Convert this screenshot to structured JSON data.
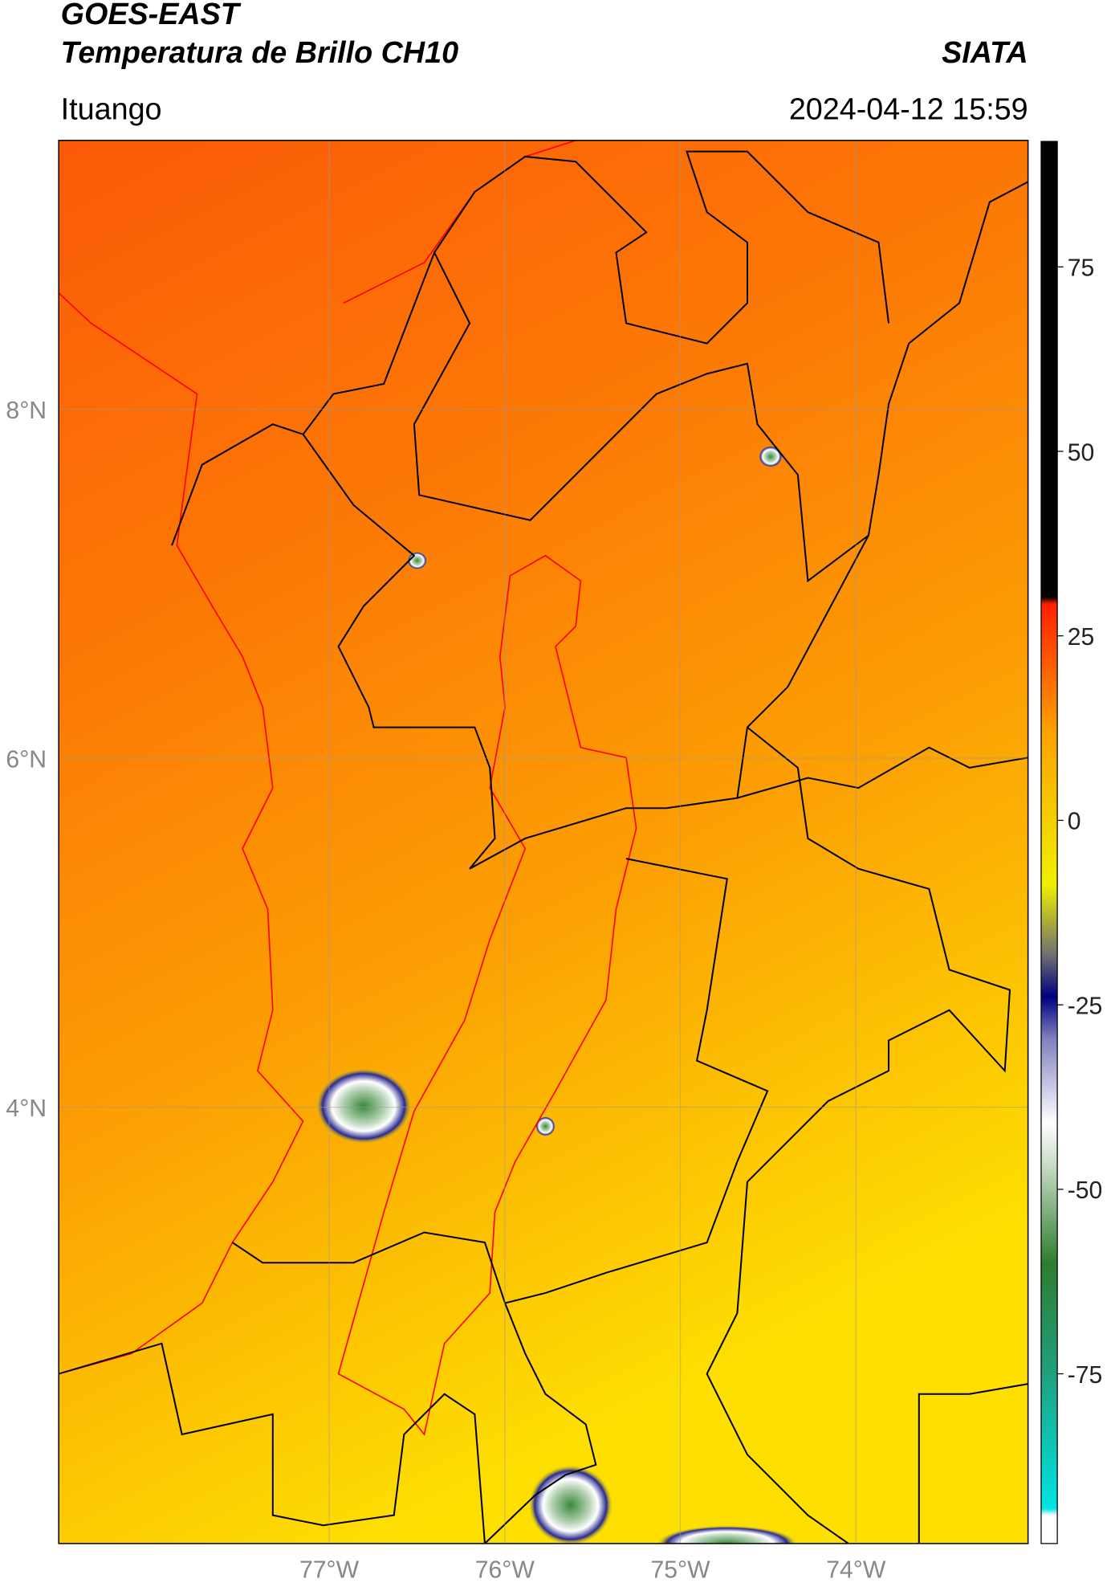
{
  "header": {
    "title": "GOES-EAST",
    "subtitle": "Temperatura de Brillo CH10",
    "brand": "SIATA",
    "location": "Ituango",
    "datetime": "2024-04-12 15:59"
  },
  "map": {
    "xlim": [
      -78.54,
      -73.02
    ],
    "ylim": [
      1.5,
      9.54
    ],
    "xticks": [
      {
        "value": -77,
        "label": "77°W"
      },
      {
        "value": -76,
        "label": "76°W"
      },
      {
        "value": -75,
        "label": "75°W"
      },
      {
        "value": -74,
        "label": "74°W"
      }
    ],
    "yticks": [
      {
        "value": 8,
        "label": "8°N"
      },
      {
        "value": 6,
        "label": "6°N"
      },
      {
        "value": 4,
        "label": "4°N"
      }
    ],
    "grid": true
  },
  "colorbar": {
    "lim": [
      -98,
      92
    ],
    "ticks": [
      75,
      50,
      25,
      0,
      -25,
      -50,
      -75
    ]
  }
}
